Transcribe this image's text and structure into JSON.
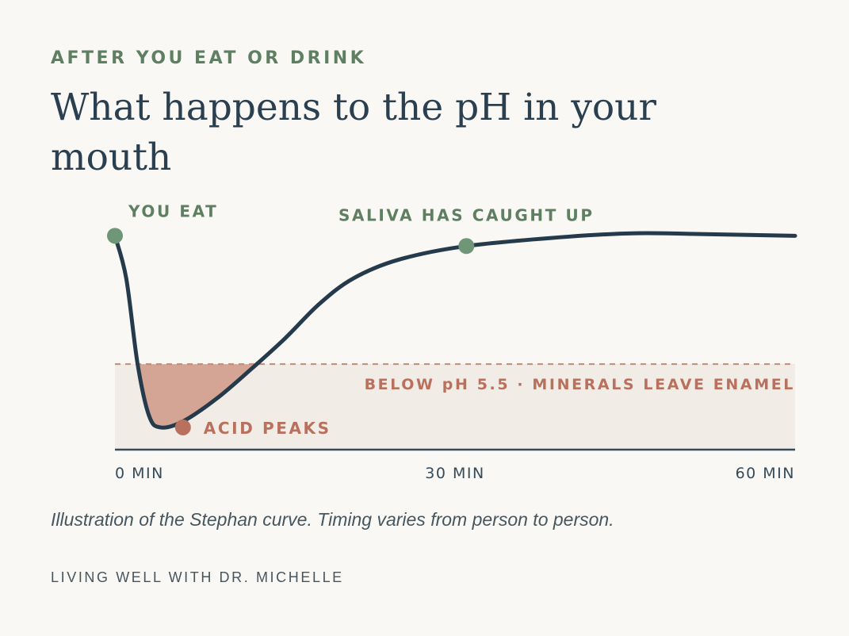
{
  "header": {
    "eyebrow": "AFTER YOU EAT OR DRINK",
    "title": "What happens to the pH in your mouth"
  },
  "chart_data": {
    "type": "line",
    "x_ticks": [
      {
        "x": 0,
        "label": "0 MIN"
      },
      {
        "x": 30,
        "label": "30 MIN"
      },
      {
        "x": 60,
        "label": "60 MIN"
      }
    ],
    "xlim": [
      0,
      60
    ],
    "ylim": [
      4.5,
      7.3
    ],
    "threshold": {
      "y": 5.5,
      "label": "BELOW pH 5.5 · MINERALS LEAVE ENAMEL"
    },
    "series": [
      {
        "points": [
          [
            0,
            7.0
          ],
          [
            1,
            6.5
          ],
          [
            2,
            5.5
          ],
          [
            3,
            4.9
          ],
          [
            4,
            4.76
          ],
          [
            6,
            4.83
          ],
          [
            9,
            5.1
          ],
          [
            12,
            5.44
          ],
          [
            15,
            5.8
          ],
          [
            18,
            6.2
          ],
          [
            21,
            6.5
          ],
          [
            25,
            6.72
          ],
          [
            31,
            6.88
          ],
          [
            40,
            6.99
          ],
          [
            46,
            7.03
          ],
          [
            52,
            7.02
          ],
          [
            60,
            7.0
          ]
        ]
      }
    ],
    "annotations": [
      {
        "x": 0,
        "y": 7.0,
        "label": "YOU EAT",
        "color": "#6e9677"
      },
      {
        "x": 6,
        "y": 4.76,
        "label": "ACID PEAKS",
        "color": "#b9705c"
      },
      {
        "x": 31,
        "y": 6.88,
        "label": "SALIVA HAS CAUGHT UP",
        "color": "#6e9677"
      }
    ],
    "colors": {
      "curve": "#253b4b",
      "green": "#6e9677",
      "green_text": "#5e7f61",
      "terracotta": "#b9705c",
      "acid_fill": "#d4a494",
      "zone": "#f1ece6",
      "threshold_line": "#c48a78",
      "axis": "#354b5a",
      "tick_text": "#354b5a"
    },
    "grid": false
  },
  "caption": "Illustration of the Stephan curve. Timing varies from person to person.",
  "footer": "LIVING WELL WITH DR. MICHELLE"
}
